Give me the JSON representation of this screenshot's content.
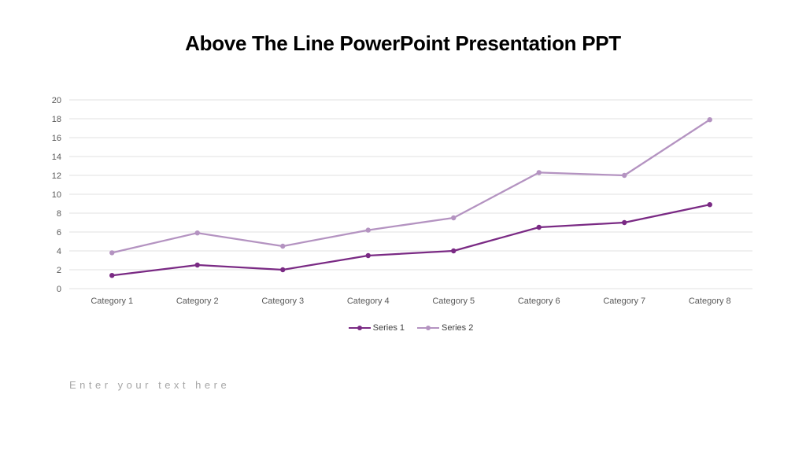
{
  "slide": {
    "title": "Above The Line PowerPoint Presentation PPT",
    "text_placeholder": "Enter your text here"
  },
  "chart_data": {
    "type": "line",
    "title": "",
    "xlabel": "",
    "ylabel": "",
    "categories": [
      "Category 1",
      "Category 2",
      "Category 3",
      "Category 4",
      "Category 5",
      "Category 6",
      "Category 7",
      "Category 8"
    ],
    "series": [
      {
        "name": "Series 1",
        "color": "#7A2A84",
        "values": [
          1.4,
          2.5,
          2.0,
          3.5,
          4.0,
          6.5,
          7.0,
          8.9
        ]
      },
      {
        "name": "Series 2",
        "color": "#B493C1",
        "values": [
          3.8,
          5.9,
          4.5,
          6.2,
          7.5,
          12.3,
          12.0,
          17.9
        ]
      }
    ],
    "ylim": [
      0,
      20
    ],
    "ytick_step": 2,
    "grid": true,
    "legend_position": "bottom",
    "colors": {
      "gridline": "#E2E2E2",
      "tick_label": "#595959",
      "legend_text": "#3F3F3F",
      "title_text": "#000000",
      "placeholder_text": "#A6A6A6"
    }
  }
}
